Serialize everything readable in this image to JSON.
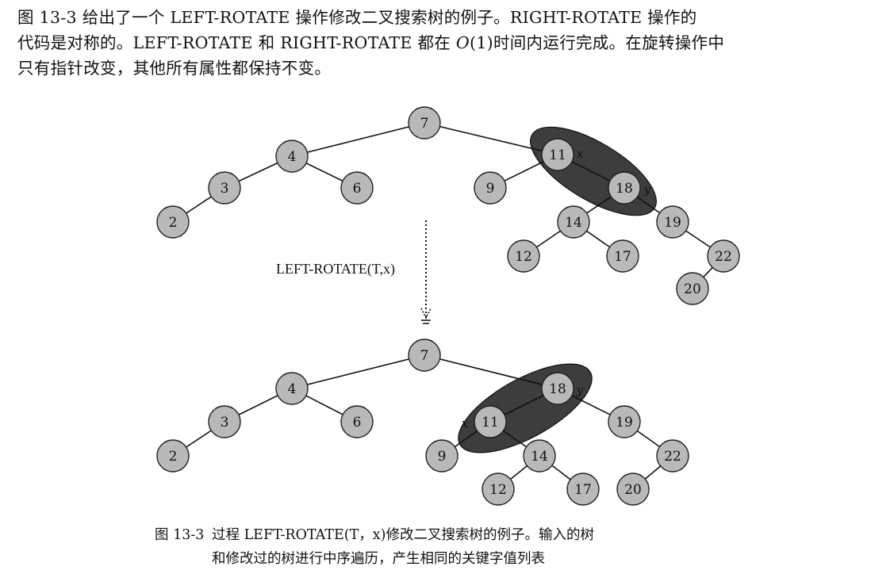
{
  "text": {
    "line1": "图 13-3 给出了一个 LEFT-ROTATE 操作修改二叉搜索树的例子。RIGHT-ROTATE 操作的",
    "line2_a": "代码是对称的。LEFT-ROTATE 和 RIGHT-ROTATE 都在 ",
    "line2_o": "O",
    "line2_b": "(1)时间内运行完成。在旋转操作中",
    "line3": "只有指针改变，其他所有属性都保持不变。"
  },
  "figure": {
    "operation_label": "LEFT-ROTATE(T,x)",
    "before": {
      "nodes": [
        {
          "key": "7"
        },
        {
          "key": "4"
        },
        {
          "key": "3"
        },
        {
          "key": "6"
        },
        {
          "key": "2"
        },
        {
          "key": "11",
          "pointer": "x"
        },
        {
          "key": "9"
        },
        {
          "key": "18",
          "pointer": "y"
        },
        {
          "key": "14"
        },
        {
          "key": "19"
        },
        {
          "key": "12"
        },
        {
          "key": "17"
        },
        {
          "key": "22"
        },
        {
          "key": "20"
        }
      ]
    },
    "after": {
      "nodes": [
        {
          "key": "7"
        },
        {
          "key": "4"
        },
        {
          "key": "3"
        },
        {
          "key": "6"
        },
        {
          "key": "2"
        },
        {
          "key": "18",
          "pointer": "y"
        },
        {
          "key": "11",
          "pointer": "x"
        },
        {
          "key": "19"
        },
        {
          "key": "9"
        },
        {
          "key": "14"
        },
        {
          "key": "22"
        },
        {
          "key": "12"
        },
        {
          "key": "17"
        },
        {
          "key": "20"
        }
      ]
    },
    "node_fill": "#b9b9b9",
    "highlight_fill": "#3d3d3d"
  },
  "caption": {
    "number": "图 13-3",
    "line1": "过程 LEFT-ROTATE(T，x)修改二叉搜索树的例子。输入的树",
    "line2": "和修改过的树进行中序遍历，产生相同的关键字值列表"
  }
}
